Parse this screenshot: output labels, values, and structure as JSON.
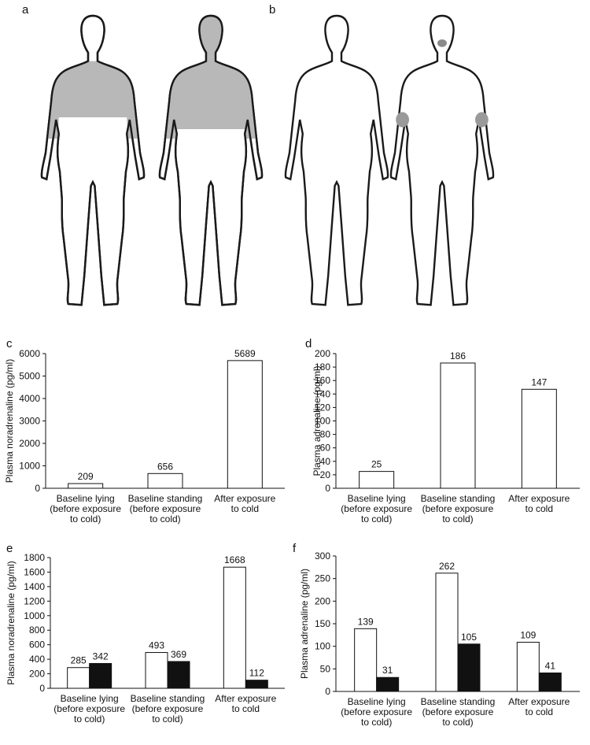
{
  "panels": {
    "a": "a",
    "b": "b",
    "c": "c",
    "d": "d",
    "e": "e",
    "f": "f"
  },
  "body_maps": {
    "shade_color": "#b8b8b8",
    "outline_color": "#1a1a1a"
  },
  "chart_data": [
    {
      "panel": "c",
      "type": "bar",
      "ylabel": "Plasma noradrenaline (pg/ml)",
      "ylim": [
        0,
        6000
      ],
      "yticks": [
        0,
        1000,
        2000,
        3000,
        4000,
        5000,
        6000
      ],
      "categories": [
        [
          "Baseline lying",
          "(before exposure",
          "to cold)"
        ],
        [
          "Baseline standing",
          "(before exposure",
          "to cold)"
        ],
        [
          "After exposure",
          "to cold"
        ]
      ],
      "series": [
        {
          "color": "#ffffff",
          "values": [
            209,
            656,
            5689
          ]
        }
      ],
      "data_labels": [
        "209",
        "656",
        "5689"
      ]
    },
    {
      "panel": "d",
      "type": "bar",
      "ylabel": "Plasma adrenaline (pg/ml)",
      "ylim": [
        0,
        200
      ],
      "yticks": [
        0,
        20,
        40,
        60,
        80,
        100,
        120,
        140,
        160,
        180,
        200
      ],
      "categories": [
        [
          "Baseline lying",
          "(before exposure",
          "to cold)"
        ],
        [
          "Baseline standing",
          "(before exposure",
          "to cold)"
        ],
        [
          "After exposure",
          "to cold"
        ]
      ],
      "series": [
        {
          "color": "#ffffff",
          "values": [
            25,
            186,
            147
          ]
        }
      ],
      "data_labels": [
        "25",
        "186",
        "147"
      ]
    },
    {
      "panel": "e",
      "type": "bar",
      "ylabel": "Plasma noradrenaline (pg/ml)",
      "ylim": [
        0,
        1800
      ],
      "yticks": [
        0,
        200,
        400,
        600,
        800,
        1000,
        1200,
        1400,
        1600,
        1800
      ],
      "categories": [
        [
          "Baseline lying",
          "(before exposure",
          "to cold)"
        ],
        [
          "Baseline standing",
          "(before exposure",
          "to cold)"
        ],
        [
          "After exposure",
          "to cold"
        ]
      ],
      "series": [
        {
          "color": "#ffffff",
          "values": [
            285,
            493,
            1668
          ]
        },
        {
          "color": "#111111",
          "values": [
            342,
            369,
            112
          ]
        }
      ],
      "data_labels": [
        [
          "285",
          "493",
          "1668"
        ],
        [
          "342",
          "369",
          "112"
        ]
      ]
    },
    {
      "panel": "f",
      "type": "bar",
      "ylabel": "Plasma adrenaline (pg/ml)",
      "ylim": [
        0,
        300
      ],
      "yticks": [
        0,
        50,
        100,
        150,
        200,
        250,
        300
      ],
      "categories": [
        [
          "Baseline lying",
          "(before exposure",
          "to cold)"
        ],
        [
          "Baseline standing",
          "(before exposure",
          "to cold)"
        ],
        [
          "After exposure",
          "to cold"
        ]
      ],
      "series": [
        {
          "color": "#ffffff",
          "values": [
            139,
            262,
            109
          ]
        },
        {
          "color": "#111111",
          "values": [
            31,
            105,
            41
          ]
        }
      ],
      "data_labels": [
        [
          "139",
          "262",
          "109"
        ],
        [
          "31",
          "105",
          "41"
        ]
      ]
    }
  ]
}
